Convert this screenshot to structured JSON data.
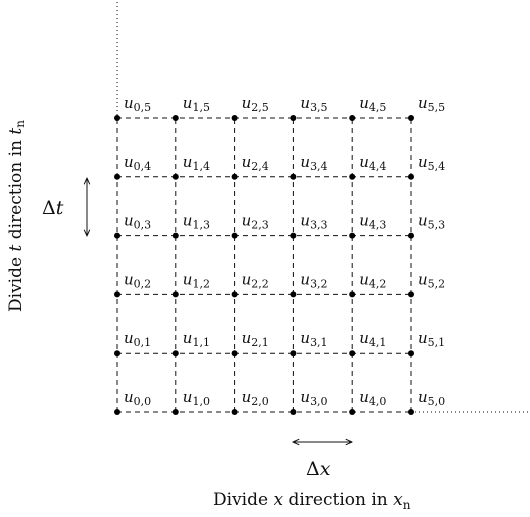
{
  "grid": {
    "cols": 6,
    "rows": 6,
    "label_prefix": "u",
    "colors": {
      "line": "#111111",
      "point": "#000000",
      "text": "#111111"
    }
  },
  "delta_t": {
    "symbol": "Δ",
    "var": "t"
  },
  "delta_x": {
    "symbol": "Δ",
    "var": "x"
  },
  "axis_t_caption": {
    "pre": "Divide ",
    "var": "t",
    "mid": " direction in ",
    "var2": "t",
    "sub": "n"
  },
  "axis_x_caption": {
    "pre": "Divide ",
    "var": "x",
    "mid": " direction in ",
    "var2": "x",
    "sub": "n"
  }
}
